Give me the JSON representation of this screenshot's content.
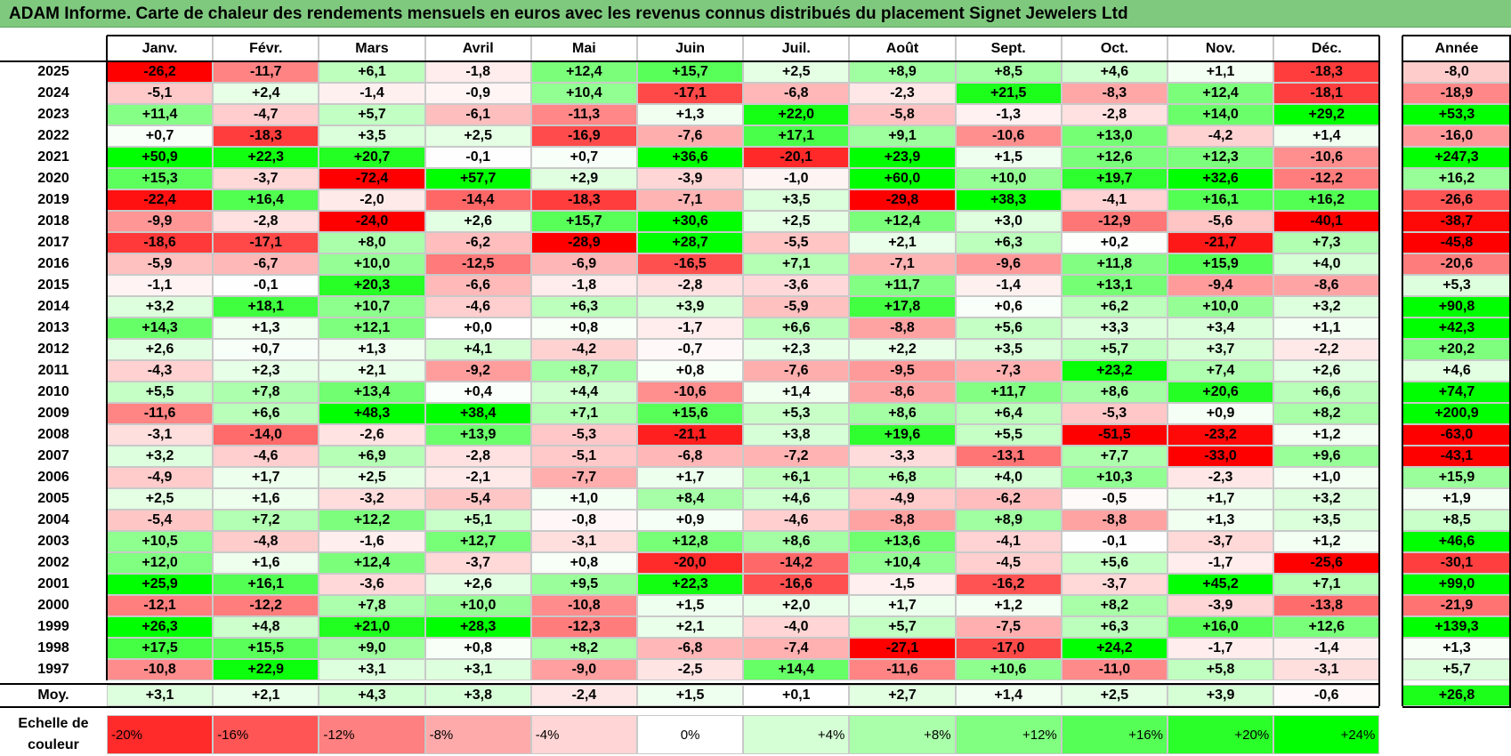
{
  "title": "ADAM Informe. Carte de chaleur des rendements mensuels en euros avec les revenus connus distribués du placement Signet Jewelers Ltd",
  "colors": {
    "title_bg": "#7fc97f",
    "negative": "#ff0000",
    "positive": "#00ff00",
    "neutral": "#ffffff"
  },
  "chart_data": {
    "type": "heatmap",
    "title": "ADAM Informe. Carte de chaleur des rendements mensuels en euros avec les revenus connus distribués du placement Signet Jewelers Ltd",
    "columns": [
      "Janv.",
      "Févr.",
      "Mars",
      "Avril",
      "Mai",
      "Juin",
      "Juil.",
      "Août",
      "Sept.",
      "Oct.",
      "Nov.",
      "Déc."
    ],
    "year_column_label": "Année",
    "rows": [
      {
        "year": "2025",
        "values": [
          "-26,2",
          "-11,7",
          "+6,1",
          "-1,8",
          "+12,4",
          "+15,7",
          "+2,5",
          "+8,9",
          "+8,5",
          "+4,6",
          "+1,1",
          "-18,3"
        ],
        "annual": "-8,0"
      },
      {
        "year": "2024",
        "values": [
          "-5,1",
          "+2,4",
          "-1,4",
          "-0,9",
          "+10,4",
          "-17,1",
          "-6,8",
          "-2,3",
          "+21,5",
          "-8,3",
          "+12,4",
          "-18,1"
        ],
        "annual": "-18,9"
      },
      {
        "year": "2023",
        "values": [
          "+11,4",
          "-4,7",
          "+5,7",
          "-6,1",
          "-11,3",
          "+1,3",
          "+22,0",
          "-5,8",
          "-1,3",
          "-2,8",
          "+14,0",
          "+29,2"
        ],
        "annual": "+53,3"
      },
      {
        "year": "2022",
        "values": [
          "+0,7",
          "-18,3",
          "+3,5",
          "+2,5",
          "-16,9",
          "-7,6",
          "+17,1",
          "+9,1",
          "-10,6",
          "+13,0",
          "-4,2",
          "+1,4"
        ],
        "annual": "-16,0"
      },
      {
        "year": "2021",
        "values": [
          "+50,9",
          "+22,3",
          "+20,7",
          "-0,1",
          "+0,7",
          "+36,6",
          "-20,1",
          "+23,9",
          "+1,5",
          "+12,6",
          "+12,3",
          "-10,6"
        ],
        "annual": "+247,3"
      },
      {
        "year": "2020",
        "values": [
          "+15,3",
          "-3,7",
          "-72,4",
          "+57,7",
          "+2,9",
          "-3,9",
          "-1,0",
          "+60,0",
          "+10,0",
          "+19,7",
          "+32,6",
          "-12,2"
        ],
        "annual": "+16,2"
      },
      {
        "year": "2019",
        "values": [
          "-22,4",
          "+16,4",
          "-2,0",
          "-14,4",
          "-18,3",
          "-7,1",
          "+3,5",
          "-29,8",
          "+38,3",
          "-4,1",
          "+16,1",
          "+16,2"
        ],
        "annual": "-26,6"
      },
      {
        "year": "2018",
        "values": [
          "-9,9",
          "-2,8",
          "-24,0",
          "+2,6",
          "+15,7",
          "+30,6",
          "+2,5",
          "+12,4",
          "+3,0",
          "-12,9",
          "-5,6",
          "-40,1"
        ],
        "annual": "-38,7"
      },
      {
        "year": "2017",
        "values": [
          "-18,6",
          "-17,1",
          "+8,0",
          "-6,2",
          "-28,9",
          "+28,7",
          "-5,5",
          "+2,1",
          "+6,3",
          "+0,2",
          "-21,7",
          "+7,3"
        ],
        "annual": "-45,8"
      },
      {
        "year": "2016",
        "values": [
          "-5,9",
          "-6,7",
          "+10,0",
          "-12,5",
          "-6,9",
          "-16,5",
          "+7,1",
          "-7,1",
          "-9,6",
          "+11,8",
          "+15,9",
          "+4,0"
        ],
        "annual": "-20,6"
      },
      {
        "year": "2015",
        "values": [
          "-1,1",
          "-0,1",
          "+20,3",
          "-6,6",
          "-1,8",
          "-2,8",
          "-3,6",
          "+11,7",
          "-1,4",
          "+13,1",
          "-9,4",
          "-8,6"
        ],
        "annual": "+5,3"
      },
      {
        "year": "2014",
        "values": [
          "+3,2",
          "+18,1",
          "+10,7",
          "-4,6",
          "+6,3",
          "+3,9",
          "-5,9",
          "+17,8",
          "+0,6",
          "+6,2",
          "+10,0",
          "+3,2"
        ],
        "annual": "+90,8"
      },
      {
        "year": "2013",
        "values": [
          "+14,3",
          "+1,3",
          "+12,1",
          "+0,0",
          "+0,8",
          "-1,7",
          "+6,6",
          "-8,8",
          "+5,6",
          "+3,3",
          "+3,4",
          "+1,1"
        ],
        "annual": "+42,3"
      },
      {
        "year": "2012",
        "values": [
          "+2,6",
          "+0,7",
          "+1,3",
          "+4,1",
          "-4,2",
          "-0,7",
          "+2,3",
          "+2,2",
          "+3,5",
          "+5,7",
          "+3,7",
          "-2,2"
        ],
        "annual": "+20,2"
      },
      {
        "year": "2011",
        "values": [
          "-4,3",
          "+2,3",
          "+2,1",
          "-9,2",
          "+8,7",
          "+0,8",
          "-7,6",
          "-9,5",
          "-7,3",
          "+23,2",
          "+7,4",
          "+2,6"
        ],
        "annual": "+4,6"
      },
      {
        "year": "2010",
        "values": [
          "+5,5",
          "+7,8",
          "+13,4",
          "+0,4",
          "+4,4",
          "-10,6",
          "+1,4",
          "-8,6",
          "+11,7",
          "+8,6",
          "+20,6",
          "+6,6"
        ],
        "annual": "+74,7"
      },
      {
        "year": "2009",
        "values": [
          "-11,6",
          "+6,6",
          "+48,3",
          "+38,4",
          "+7,1",
          "+15,6",
          "+5,3",
          "+8,6",
          "+6,4",
          "-5,3",
          "+0,9",
          "+8,2"
        ],
        "annual": "+200,9"
      },
      {
        "year": "2008",
        "values": [
          "-3,1",
          "-14,0",
          "-2,6",
          "+13,9",
          "-5,3",
          "-21,1",
          "+3,8",
          "+19,6",
          "+5,5",
          "-51,5",
          "-23,2",
          "+1,2"
        ],
        "annual": "-63,0"
      },
      {
        "year": "2007",
        "values": [
          "+3,2",
          "-4,6",
          "+6,9",
          "-2,8",
          "-5,1",
          "-6,8",
          "-7,2",
          "-3,3",
          "-13,1",
          "+7,7",
          "-33,0",
          "+9,6"
        ],
        "annual": "-43,1"
      },
      {
        "year": "2006",
        "values": [
          "-4,9",
          "+1,7",
          "+2,5",
          "-2,1",
          "-7,7",
          "+1,7",
          "+6,1",
          "+6,8",
          "+4,0",
          "+10,3",
          "-2,3",
          "+1,0"
        ],
        "annual": "+15,9"
      },
      {
        "year": "2005",
        "values": [
          "+2,5",
          "+1,6",
          "-3,2",
          "-5,4",
          "+1,0",
          "+8,4",
          "+4,6",
          "-4,9",
          "-6,2",
          "-0,5",
          "+1,7",
          "+3,2"
        ],
        "annual": "+1,9"
      },
      {
        "year": "2004",
        "values": [
          "-5,4",
          "+7,2",
          "+12,2",
          "+5,1",
          "-0,8",
          "+0,9",
          "-4,6",
          "-8,8",
          "+8,9",
          "-8,8",
          "+1,3",
          "+3,5"
        ],
        "annual": "+8,5"
      },
      {
        "year": "2003",
        "values": [
          "+10,5",
          "-4,8",
          "-1,6",
          "+12,7",
          "-3,1",
          "+12,8",
          "+8,6",
          "+13,6",
          "-4,1",
          "-0,1",
          "-3,7",
          "+1,2"
        ],
        "annual": "+46,6"
      },
      {
        "year": "2002",
        "values": [
          "+12,0",
          "+1,6",
          "+12,4",
          "-3,7",
          "+0,8",
          "-20,0",
          "-14,2",
          "+10,4",
          "-4,5",
          "+5,6",
          "-1,7",
          "-25,6"
        ],
        "annual": "-30,1"
      },
      {
        "year": "2001",
        "values": [
          "+25,9",
          "+16,1",
          "-3,6",
          "+2,6",
          "+9,5",
          "+22,3",
          "-16,6",
          "-1,5",
          "-16,2",
          "-3,7",
          "+45,2",
          "+7,1"
        ],
        "annual": "+99,0"
      },
      {
        "year": "2000",
        "values": [
          "-12,1",
          "-12,2",
          "+7,8",
          "+10,0",
          "-10,8",
          "+1,5",
          "+2,0",
          "+1,7",
          "+1,2",
          "+8,2",
          "-3,9",
          "-13,8"
        ],
        "annual": "-21,9"
      },
      {
        "year": "1999",
        "values": [
          "+26,3",
          "+4,8",
          "+21,0",
          "+28,3",
          "-12,3",
          "+2,1",
          "-4,0",
          "+5,7",
          "-7,5",
          "+6,3",
          "+16,0",
          "+12,6"
        ],
        "annual": "+139,3"
      },
      {
        "year": "1998",
        "values": [
          "+17,5",
          "+15,5",
          "+9,0",
          "+0,8",
          "+8,2",
          "-6,8",
          "-7,4",
          "-27,1",
          "-17,0",
          "+24,2",
          "-1,7",
          "-1,4"
        ],
        "annual": "+1,3"
      },
      {
        "year": "1997",
        "values": [
          "-10,8",
          "+22,9",
          "+3,1",
          "+3,1",
          "-9,0",
          "-2,5",
          "+14,4",
          "-11,6",
          "+10,6",
          "-11,0",
          "+5,8",
          "-3,1"
        ],
        "annual": "+5,7"
      }
    ],
    "average_row": {
      "label": "Moy.",
      "values": [
        "+3,1",
        "+2,1",
        "+4,3",
        "+3,8",
        "-2,4",
        "+1,5",
        "+0,1",
        "+2,7",
        "+1,4",
        "+2,5",
        "+3,9",
        "-0,6"
      ],
      "annual": "+26,8"
    },
    "color_scale": {
      "label": "Echelle de couleur",
      "steps": [
        "-20%",
        "-16%",
        "-12%",
        "-8%",
        "-4%",
        "0%",
        "+4%",
        "+8%",
        "+12%",
        "+16%",
        "+20%",
        "+24%"
      ],
      "step_values": [
        -20,
        -16,
        -12,
        -8,
        -4,
        0,
        4,
        8,
        12,
        16,
        20,
        24
      ]
    }
  }
}
